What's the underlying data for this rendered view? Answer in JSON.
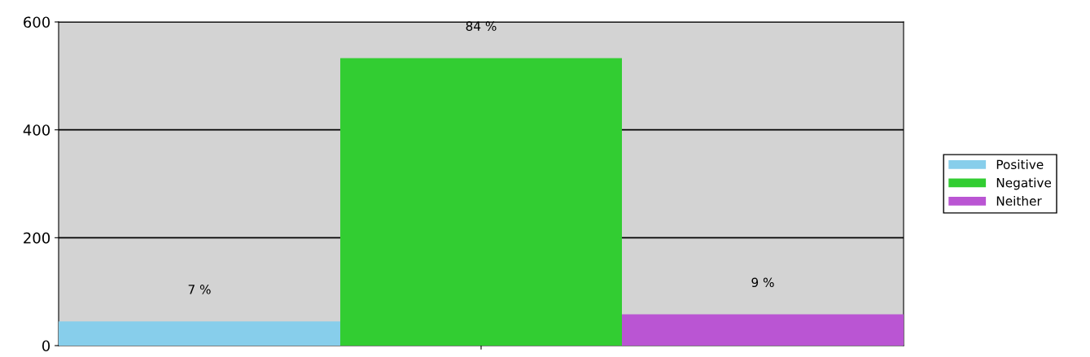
{
  "chart_data": {
    "type": "bar",
    "categories": [
      null
    ],
    "series": [
      {
        "name": "Positive",
        "color": "#87ceeb",
        "values": [
          45
        ]
      },
      {
        "name": "Negative",
        "color": "#32cd32",
        "values": [
          533
        ]
      },
      {
        "name": "Neither",
        "color": "#ba55d3",
        "values": [
          58
        ]
      }
    ],
    "annotations": [
      {
        "text": "7 %",
        "y": 45
      },
      {
        "text": "84 %",
        "y": 533
      },
      {
        "text": "9 %",
        "y": 58
      }
    ],
    "ylim": [
      0,
      600
    ],
    "yticks": [
      0,
      200,
      400,
      600
    ],
    "grid": "y",
    "legend": "right"
  }
}
